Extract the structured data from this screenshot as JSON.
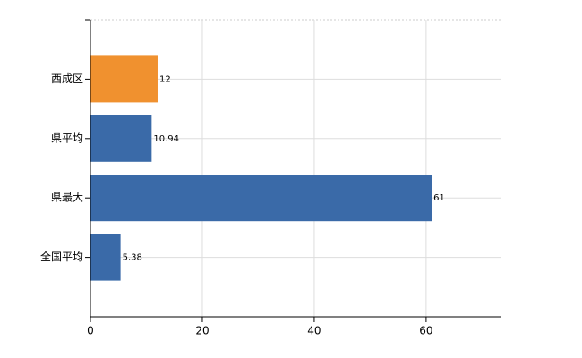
{
  "chart_data": {
    "type": "bar",
    "orientation": "horizontal",
    "categories": [
      "西成区",
      "県平均",
      "県最大",
      "全国平均"
    ],
    "values": [
      12,
      10.94,
      61,
      5.38
    ],
    "colors": [
      "#f0912f",
      "#3a6aa8",
      "#3a6aa8",
      "#3a6aa8"
    ],
    "xlim": [
      0,
      73.3
    ],
    "xticks": [
      0,
      20,
      40,
      60
    ],
    "grid": true
  }
}
